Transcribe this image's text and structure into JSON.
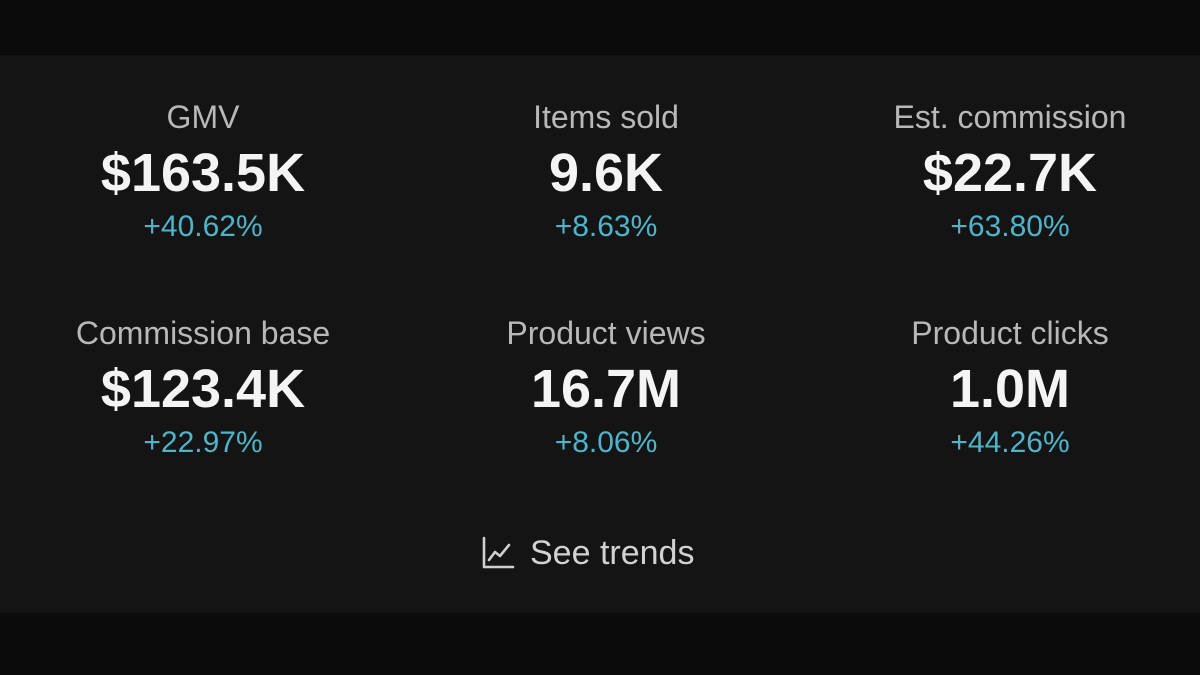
{
  "metrics": [
    {
      "label": "GMV",
      "value": "$163.5K",
      "change": "+40.62%"
    },
    {
      "label": "Items sold",
      "value": "9.6K",
      "change": "+8.63%"
    },
    {
      "label": "Est. commission",
      "value": "$22.7K",
      "change": "+63.80%"
    },
    {
      "label": "Commission base",
      "value": "$123.4K",
      "change": "+22.97%"
    },
    {
      "label": "Product views",
      "value": "16.7M",
      "change": "+8.06%"
    },
    {
      "label": "Product clicks",
      "value": "1.0M",
      "change": "+44.26%"
    }
  ],
  "trends_link": {
    "label": "See trends",
    "icon": "line-chart-icon"
  },
  "colors": {
    "background": "#0b0b0b",
    "panel": "#141414",
    "label": "#b8b8b8",
    "value": "#f4f4f4",
    "change_positive": "#4fb3c9"
  }
}
